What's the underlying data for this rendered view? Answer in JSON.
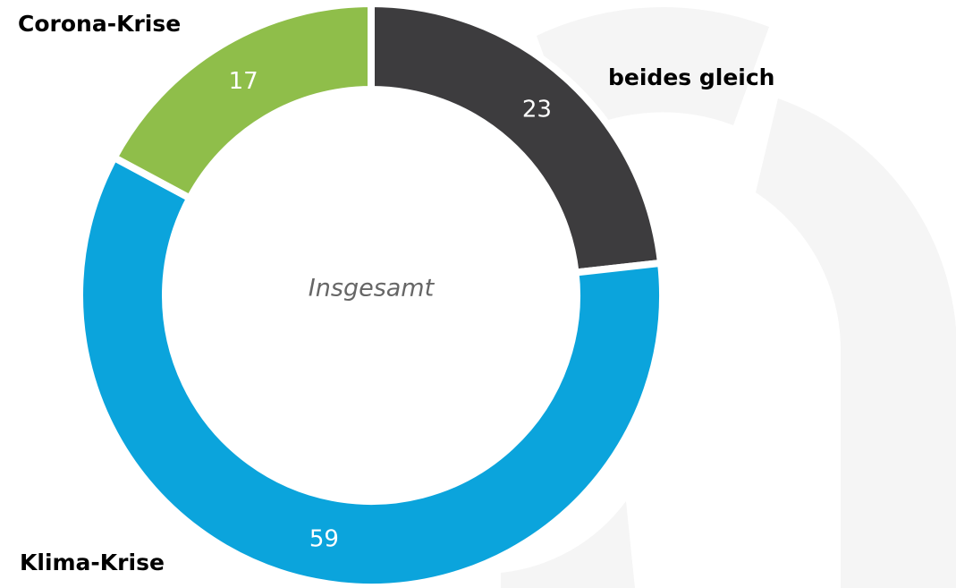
{
  "chart_data": {
    "type": "donut",
    "center_label": "Insgesamt",
    "categories": [
      "beides gleich",
      "Klima-Krise",
      "Corona-Krise"
    ],
    "values": [
      23,
      59,
      17
    ],
    "colors": [
      "#3d3c3e",
      "#0ba4dc",
      "#8fbe4a"
    ]
  }
}
